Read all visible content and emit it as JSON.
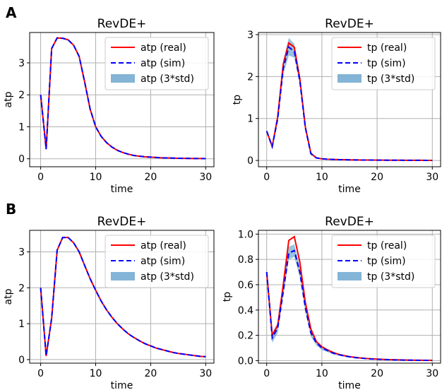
{
  "panel_labels": {
    "a": "A",
    "b": "B"
  },
  "colors": {
    "real": "#ff0000",
    "sim": "#0000ff",
    "band": "#1f77b4",
    "band_alpha": 0.45,
    "grid": "#b0b0b0"
  },
  "chart_data": [
    {
      "type": "line",
      "panel": "A",
      "title": "RevDE+",
      "xlabel": "time",
      "ylabel": "atp",
      "xlim": [
        -2,
        31.5
      ],
      "ylim": [
        -0.25,
        3.95
      ],
      "xticks": [
        0,
        10,
        20,
        30
      ],
      "yticks": [
        0,
        1,
        2,
        3
      ],
      "grid": true,
      "legend_position": "top-right",
      "x": [
        0,
        1,
        2,
        3,
        4,
        5,
        6,
        7,
        8,
        9,
        10,
        11,
        12,
        13,
        14,
        15,
        16,
        17,
        18,
        19,
        20,
        21,
        22,
        23,
        24,
        25,
        26,
        27,
        28,
        29,
        30
      ],
      "series": [
        {
          "name": "atp (real)",
          "style": "solid",
          "values": [
            2.0,
            0.3,
            3.45,
            3.78,
            3.77,
            3.72,
            3.55,
            3.2,
            2.4,
            1.55,
            1.0,
            0.7,
            0.5,
            0.36,
            0.26,
            0.19,
            0.14,
            0.1,
            0.08,
            0.06,
            0.05,
            0.04,
            0.03,
            0.025,
            0.02,
            0.015,
            0.012,
            0.01,
            0.008,
            0.006,
            0.005
          ]
        },
        {
          "name": "atp (sim)",
          "style": "dashed",
          "values": [
            2.0,
            0.3,
            3.45,
            3.78,
            3.77,
            3.72,
            3.55,
            3.2,
            2.4,
            1.55,
            1.0,
            0.7,
            0.5,
            0.36,
            0.26,
            0.19,
            0.14,
            0.1,
            0.08,
            0.06,
            0.05,
            0.04,
            0.03,
            0.025,
            0.02,
            0.015,
            0.012,
            0.01,
            0.008,
            0.006,
            0.005
          ]
        },
        {
          "name": "atp (3*std)",
          "style": "band",
          "lower": [
            1.98,
            0.28,
            3.43,
            3.76,
            3.75,
            3.7,
            3.53,
            3.18,
            2.38,
            1.53,
            0.98,
            0.68,
            0.48,
            0.34,
            0.24,
            0.17,
            0.12,
            0.08,
            0.06,
            0.04,
            0.03,
            0.02,
            0.01,
            0.005,
            0.0,
            0.0,
            0.0,
            0.0,
            0.0,
            0.0,
            0.0
          ],
          "upper": [
            2.02,
            0.32,
            3.47,
            3.8,
            3.79,
            3.74,
            3.57,
            3.22,
            2.42,
            1.57,
            1.02,
            0.72,
            0.52,
            0.38,
            0.28,
            0.21,
            0.16,
            0.12,
            0.1,
            0.08,
            0.07,
            0.06,
            0.05,
            0.045,
            0.04,
            0.035,
            0.032,
            0.03,
            0.028,
            0.026,
            0.025
          ]
        }
      ]
    },
    {
      "type": "line",
      "panel": "A",
      "title": "RevDE+",
      "xlabel": "time",
      "ylabel": "tp",
      "xlim": [
        -1.5,
        31.5
      ],
      "ylim": [
        -0.15,
        3.05
      ],
      "xticks": [
        0,
        10,
        20,
        30
      ],
      "yticks": [
        0,
        1,
        2,
        3
      ],
      "grid": true,
      "legend_position": "top-right",
      "x": [
        0,
        1,
        2,
        3,
        4,
        5,
        6,
        7,
        8,
        9,
        10,
        11,
        12,
        13,
        14,
        15,
        16,
        17,
        18,
        19,
        20,
        21,
        22,
        23,
        24,
        25,
        26,
        27,
        28,
        29,
        30
      ],
      "series": [
        {
          "name": "tp (real)",
          "style": "solid",
          "values": [
            0.7,
            0.33,
            1.05,
            2.3,
            2.8,
            2.7,
            1.95,
            0.8,
            0.17,
            0.06,
            0.04,
            0.03,
            0.025,
            0.02,
            0.018,
            0.015,
            0.013,
            0.011,
            0.01,
            0.009,
            0.008,
            0.007,
            0.006,
            0.005,
            0.005,
            0.004,
            0.004,
            0.003,
            0.003,
            0.002,
            0.002
          ]
        },
        {
          "name": "tp (sim)",
          "style": "dashed",
          "values": [
            0.7,
            0.33,
            1.0,
            2.2,
            2.7,
            2.6,
            1.9,
            0.78,
            0.16,
            0.06,
            0.04,
            0.03,
            0.025,
            0.02,
            0.018,
            0.015,
            0.013,
            0.011,
            0.01,
            0.009,
            0.008,
            0.007,
            0.006,
            0.005,
            0.005,
            0.004,
            0.004,
            0.003,
            0.003,
            0.002,
            0.002
          ]
        },
        {
          "name": "tp (3*std)",
          "style": "band",
          "lower": [
            0.68,
            0.3,
            0.92,
            2.05,
            2.5,
            2.45,
            1.8,
            0.72,
            0.13,
            0.05,
            0.03,
            0.02,
            0.015,
            0.01,
            0.008,
            0.006,
            0.005,
            0.004,
            0.003,
            0.003,
            0.002,
            0.002,
            0.001,
            0.001,
            0.001,
            0.0,
            0.0,
            0.0,
            0.0,
            0.0,
            0.0
          ],
          "upper": [
            0.72,
            0.36,
            1.1,
            2.38,
            2.92,
            2.78,
            2.02,
            0.86,
            0.2,
            0.08,
            0.05,
            0.04,
            0.035,
            0.03,
            0.028,
            0.024,
            0.021,
            0.018,
            0.017,
            0.015,
            0.014,
            0.012,
            0.011,
            0.009,
            0.009,
            0.008,
            0.008,
            0.006,
            0.006,
            0.004,
            0.004
          ]
        }
      ]
    },
    {
      "type": "line",
      "panel": "B",
      "title": "RevDE+",
      "xlabel": "time",
      "ylabel": "atp",
      "xlim": [
        -2,
        31.5
      ],
      "ylim": [
        -0.1,
        3.6
      ],
      "xticks": [
        0,
        10,
        20,
        30
      ],
      "yticks": [
        0,
        1,
        2,
        3
      ],
      "grid": true,
      "legend_position": "top-right",
      "x": [
        0,
        1,
        2,
        3,
        4,
        5,
        6,
        7,
        8,
        9,
        10,
        11,
        12,
        13,
        14,
        15,
        16,
        17,
        18,
        19,
        20,
        21,
        22,
        23,
        24,
        25,
        26,
        27,
        28,
        29,
        30
      ],
      "series": [
        {
          "name": "atp (real)",
          "style": "solid",
          "values": [
            2.0,
            0.1,
            1.15,
            3.05,
            3.4,
            3.4,
            3.25,
            3.0,
            2.62,
            2.25,
            1.93,
            1.63,
            1.38,
            1.17,
            0.99,
            0.84,
            0.71,
            0.61,
            0.52,
            0.44,
            0.38,
            0.32,
            0.28,
            0.24,
            0.2,
            0.17,
            0.15,
            0.13,
            0.11,
            0.09,
            0.08
          ]
        },
        {
          "name": "atp (sim)",
          "style": "dashed",
          "values": [
            2.0,
            0.1,
            1.15,
            3.05,
            3.4,
            3.4,
            3.25,
            3.0,
            2.62,
            2.25,
            1.93,
            1.63,
            1.38,
            1.17,
            0.99,
            0.84,
            0.71,
            0.61,
            0.52,
            0.44,
            0.38,
            0.32,
            0.28,
            0.24,
            0.2,
            0.17,
            0.15,
            0.13,
            0.11,
            0.09,
            0.08
          ]
        },
        {
          "name": "atp (3*std)",
          "style": "band",
          "lower": [
            1.98,
            0.08,
            1.13,
            3.03,
            3.38,
            3.38,
            3.23,
            2.98,
            2.6,
            2.23,
            1.91,
            1.61,
            1.36,
            1.15,
            0.97,
            0.82,
            0.69,
            0.59,
            0.5,
            0.42,
            0.36,
            0.3,
            0.26,
            0.22,
            0.18,
            0.15,
            0.13,
            0.11,
            0.09,
            0.07,
            0.06
          ],
          "upper": [
            2.02,
            0.12,
            1.17,
            3.07,
            3.42,
            3.42,
            3.27,
            3.02,
            2.64,
            2.27,
            1.95,
            1.65,
            1.4,
            1.19,
            1.01,
            0.86,
            0.73,
            0.63,
            0.54,
            0.46,
            0.4,
            0.34,
            0.3,
            0.26,
            0.22,
            0.19,
            0.17,
            0.15,
            0.13,
            0.11,
            0.1
          ]
        }
      ]
    },
    {
      "type": "line",
      "panel": "B",
      "title": "RevDE+",
      "xlabel": "time",
      "ylabel": "tp",
      "xlim": [
        -1.5,
        31.5
      ],
      "ylim": [
        -0.02,
        1.03
      ],
      "xticks": [
        0,
        10,
        20,
        30
      ],
      "yticks": [
        0.0,
        0.2,
        0.4,
        0.6,
        0.8,
        1.0
      ],
      "grid": true,
      "legend_position": "top-right",
      "x": [
        0,
        1,
        2,
        3,
        4,
        5,
        6,
        7,
        8,
        9,
        10,
        11,
        12,
        13,
        14,
        15,
        16,
        17,
        18,
        19,
        20,
        21,
        22,
        23,
        24,
        25,
        26,
        27,
        28,
        29,
        30
      ],
      "series": [
        {
          "name": "tp (real)",
          "style": "solid",
          "values": [
            0.7,
            0.2,
            0.28,
            0.6,
            0.95,
            0.98,
            0.78,
            0.46,
            0.25,
            0.15,
            0.11,
            0.085,
            0.065,
            0.05,
            0.04,
            0.032,
            0.026,
            0.021,
            0.017,
            0.014,
            0.012,
            0.01,
            0.008,
            0.007,
            0.006,
            0.005,
            0.004,
            0.003,
            0.003,
            0.002,
            0.002
          ]
        },
        {
          "name": "tp (sim)",
          "style": "dashed",
          "values": [
            0.7,
            0.18,
            0.26,
            0.55,
            0.85,
            0.87,
            0.7,
            0.42,
            0.22,
            0.14,
            0.1,
            0.08,
            0.06,
            0.048,
            0.038,
            0.03,
            0.024,
            0.02,
            0.016,
            0.013,
            0.011,
            0.009,
            0.008,
            0.006,
            0.005,
            0.004,
            0.004,
            0.003,
            0.002,
            0.002,
            0.001
          ]
        },
        {
          "name": "tp (3*std)",
          "style": "band",
          "lower": [
            0.68,
            0.14,
            0.22,
            0.5,
            0.8,
            0.82,
            0.66,
            0.38,
            0.19,
            0.12,
            0.085,
            0.068,
            0.05,
            0.04,
            0.031,
            0.024,
            0.019,
            0.015,
            0.012,
            0.01,
            0.008,
            0.006,
            0.005,
            0.004,
            0.003,
            0.002,
            0.002,
            0.001,
            0.001,
            0.0,
            0.0
          ],
          "upper": [
            0.72,
            0.22,
            0.3,
            0.6,
            0.9,
            0.92,
            0.74,
            0.46,
            0.25,
            0.16,
            0.115,
            0.092,
            0.07,
            0.056,
            0.045,
            0.036,
            0.029,
            0.025,
            0.02,
            0.016,
            0.014,
            0.012,
            0.011,
            0.008,
            0.007,
            0.006,
            0.006,
            0.005,
            0.003,
            0.004,
            0.002
          ]
        }
      ]
    }
  ]
}
